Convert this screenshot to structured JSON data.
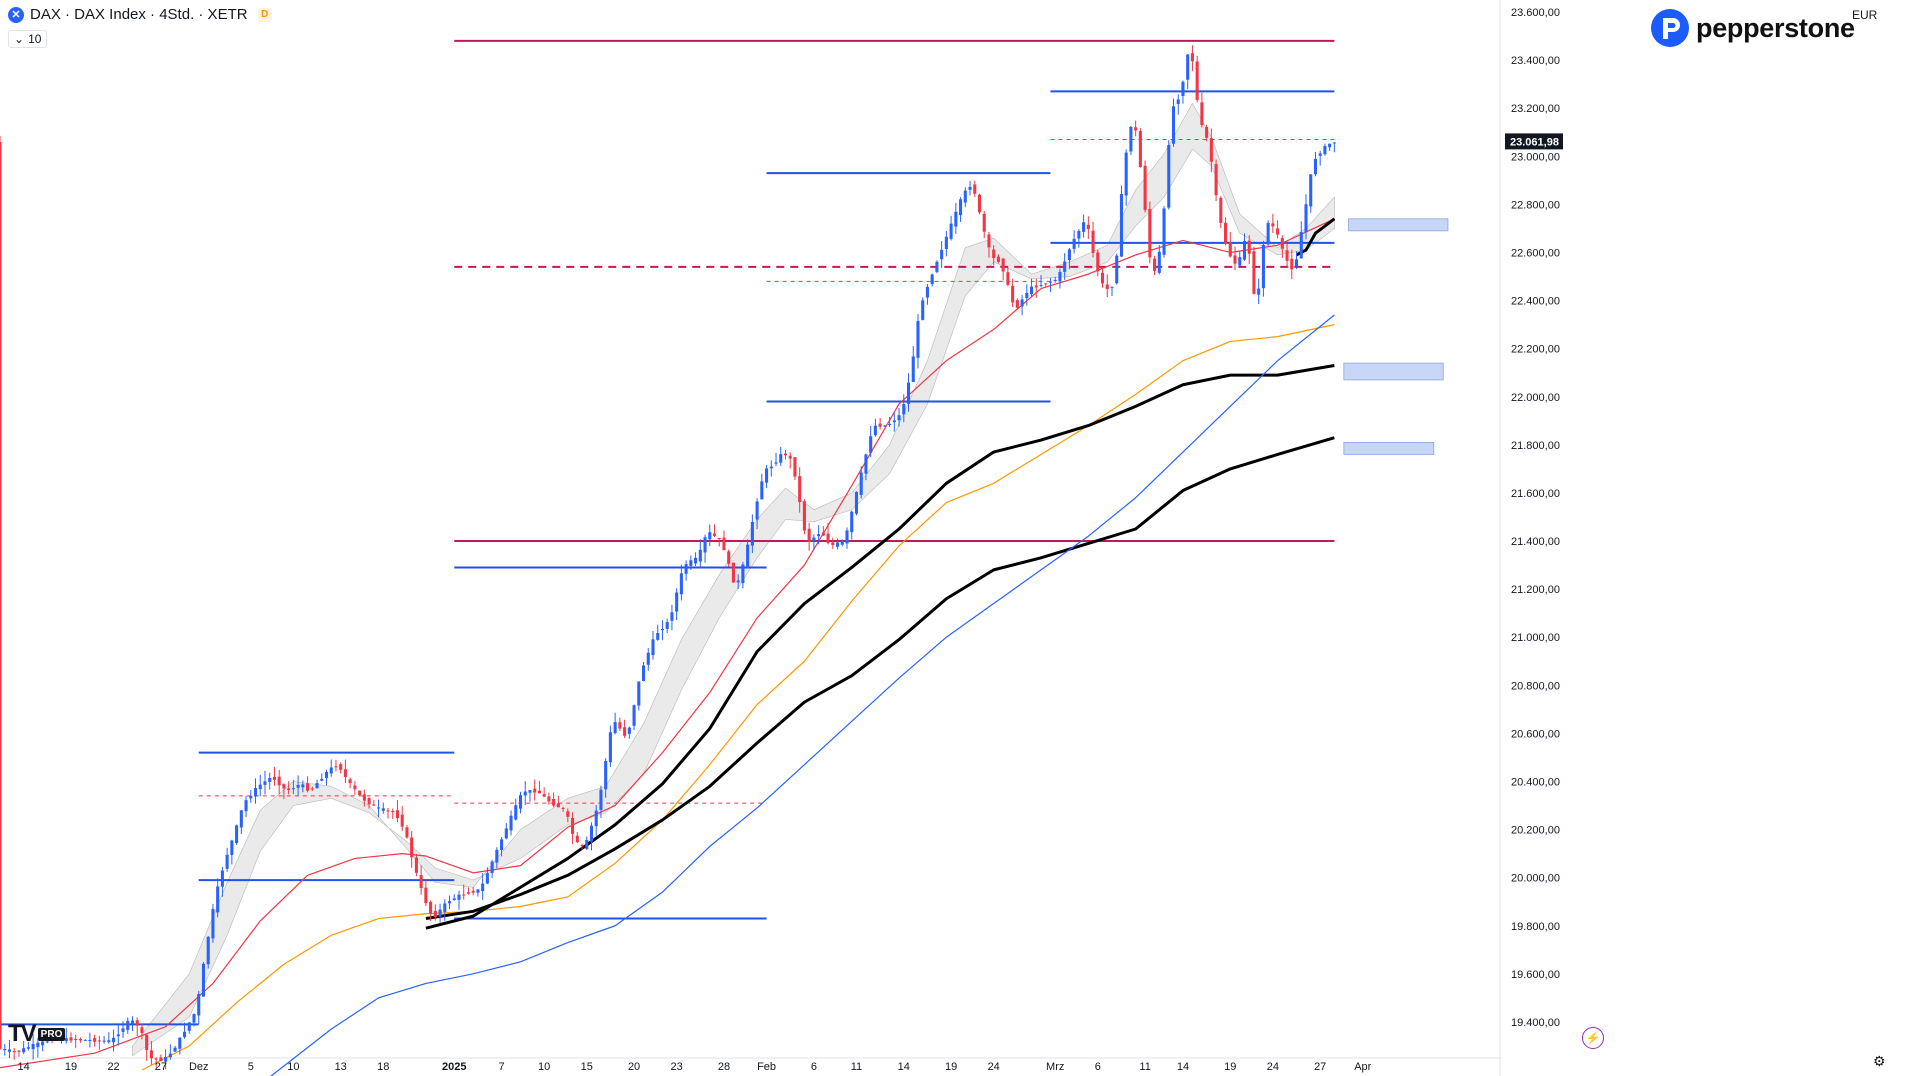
{
  "header": {
    "symbol_title": "DAX · DAX Index · 4Std. · XETR",
    "symbol_icon": "x-circle-icon",
    "data_badge": "D",
    "indicator_collapse_icon": "chevron-down-icon",
    "indicator_value": "10"
  },
  "brand": {
    "name": "pepperstone",
    "icon": "pepperstone-p-icon",
    "color": "#1a5cff"
  },
  "currency": "EUR",
  "footer": {
    "logo_text": "TV",
    "logo_badge": "PRO",
    "alert_icon": "lightning-icon",
    "settings_icon": "gear-icon"
  },
  "colors": {
    "up": "#2962ff",
    "down": "#f23645",
    "magenta": "#c2185b",
    "blue_level": "#1e53e5",
    "ema_red": "#f23645",
    "ema_orange": "#ff9800",
    "ema_black": "#000000",
    "ema_blue": "#2962ff",
    "zone": "#c6d6f7",
    "ribbon": "#b0b0b0"
  },
  "chart_data": {
    "type": "candlestick",
    "title": "",
    "y_axis": {
      "side": "right",
      "range": [
        19250,
        23650
      ],
      "ticks": [
        "23.600,00",
        "23.400,00",
        "23.200,00",
        "23.000,00",
        "22.800,00",
        "22.600,00",
        "22.400,00",
        "22.200,00",
        "22.000,00",
        "21.800,00",
        "21.600,00",
        "21.400,00",
        "21.200,00",
        "21.000,00",
        "20.800,00",
        "20.600,00",
        "20.400,00",
        "20.200,00",
        "20.000,00",
        "19.800,00",
        "19.600,00",
        "19.400,00"
      ],
      "tick_values": [
        23600,
        23400,
        23200,
        23000,
        22800,
        22600,
        22400,
        22200,
        22000,
        21800,
        21600,
        21400,
        21200,
        21000,
        20800,
        20600,
        20400,
        20200,
        20000,
        19800,
        19600,
        19400
      ]
    },
    "x_axis": {
      "range_index": [
        0,
        317
      ],
      "labels": [
        "14",
        "19",
        "22",
        "27",
        "Dez",
        "5",
        "10",
        "13",
        "18",
        "2025",
        "7",
        "10",
        "15",
        "20",
        "23",
        "28",
        "Feb",
        "6",
        "11",
        "14",
        "19",
        "24",
        "Mrz",
        "6",
        "11",
        "14",
        "19",
        "24",
        "27",
        "Apr"
      ],
      "label_index": [
        5,
        15,
        24,
        34,
        42,
        53,
        62,
        72,
        81,
        96,
        106,
        115,
        124,
        134,
        143,
        153,
        162,
        172,
        181,
        191,
        201,
        210,
        223,
        232,
        242,
        250,
        260,
        269,
        279,
        288
      ],
      "bold_labels": [
        "2025"
      ]
    },
    "last_price": {
      "value": 23061.98,
      "label": "23.061,98"
    },
    "candles_ohlc_path": {
      "start_index": 0,
      "points": [
        [
          0,
          19290
        ],
        [
          4,
          19275
        ],
        [
          7,
          19300
        ],
        [
          12,
          19330
        ],
        [
          24,
          19320
        ],
        [
          28,
          19410
        ],
        [
          30,
          19380
        ],
        [
          32,
          19250
        ],
        [
          35,
          19240
        ],
        [
          37,
          19280
        ],
        [
          40,
          19380
        ],
        [
          42,
          19450
        ],
        [
          44,
          19700
        ],
        [
          46,
          19920
        ],
        [
          48,
          20070
        ],
        [
          50,
          20180
        ],
        [
          52,
          20310
        ],
        [
          55,
          20380
        ],
        [
          58,
          20420
        ],
        [
          61,
          20360
        ],
        [
          64,
          20390
        ],
        [
          66,
          20360
        ],
        [
          70,
          20450
        ],
        [
          72,
          20470
        ],
        [
          74,
          20400
        ],
        [
          77,
          20330
        ],
        [
          80,
          20290
        ],
        [
          84,
          20270
        ],
        [
          86,
          20200
        ],
        [
          88,
          20050
        ],
        [
          90,
          19920
        ],
        [
          92,
          19830
        ],
        [
          95,
          19900
        ],
        [
          98,
          19930
        ],
        [
          102,
          19950
        ],
        [
          105,
          20090
        ],
        [
          108,
          20230
        ],
        [
          111,
          20360
        ],
        [
          114,
          20360
        ],
        [
          117,
          20310
        ],
        [
          120,
          20280
        ],
        [
          122,
          20150
        ],
        [
          124,
          20120
        ],
        [
          127,
          20310
        ],
        [
          130,
          20660
        ],
        [
          133,
          20580
        ],
        [
          136,
          20860
        ],
        [
          139,
          21010
        ],
        [
          142,
          21070
        ],
        [
          145,
          21300
        ],
        [
          148,
          21330
        ],
        [
          150,
          21440
        ],
        [
          153,
          21400
        ],
        [
          156,
          21200
        ],
        [
          158,
          21330
        ],
        [
          160,
          21530
        ],
        [
          162,
          21690
        ],
        [
          164,
          21720
        ],
        [
          166,
          21770
        ],
        [
          168,
          21730
        ],
        [
          171,
          21390
        ],
        [
          174,
          21440
        ],
        [
          176,
          21380
        ],
        [
          179,
          21400
        ],
        [
          182,
          21640
        ],
        [
          185,
          21880
        ],
        [
          188,
          21880
        ],
        [
          191,
          21930
        ],
        [
          193,
          22100
        ],
        [
          195,
          22380
        ],
        [
          198,
          22540
        ],
        [
          201,
          22690
        ],
        [
          204,
          22840
        ],
        [
          206,
          22890
        ],
        [
          208,
          22720
        ],
        [
          210,
          22580
        ],
        [
          212,
          22560
        ],
        [
          215,
          22360
        ],
        [
          218,
          22450
        ],
        [
          221,
          22470
        ],
        [
          224,
          22490
        ],
        [
          227,
          22640
        ],
        [
          230,
          22740
        ],
        [
          232,
          22550
        ],
        [
          234,
          22440
        ],
        [
          236,
          22470
        ],
        [
          238,
          22960
        ],
        [
          240,
          23180
        ],
        [
          242,
          22880
        ],
        [
          244,
          22480
        ],
        [
          246,
          22640
        ],
        [
          248,
          23190
        ],
        [
          250,
          23260
        ],
        [
          252,
          23480
        ],
        [
          254,
          23150
        ],
        [
          256,
          23050
        ],
        [
          258,
          22760
        ],
        [
          260,
          22600
        ],
        [
          262,
          22540
        ],
        [
          264,
          22680
        ],
        [
          266,
          22350
        ],
        [
          268,
          22730
        ],
        [
          270,
          22700
        ],
        [
          272,
          22580
        ],
        [
          274,
          22520
        ],
        [
          276,
          22740
        ],
        [
          278,
          22980
        ],
        [
          280,
          23030
        ],
        [
          282,
          23060
        ]
      ]
    },
    "series": [
      {
        "name": "",
        "kind": "ema",
        "color": "#f23645",
        "x": [
          0,
          20,
          35,
          45,
          55,
          65,
          75,
          85,
          90,
          100,
          110,
          120,
          130,
          140,
          150,
          160,
          170,
          180,
          190,
          200,
          210,
          220,
          230,
          240,
          250,
          260,
          270,
          282
        ],
        "y": [
          19210,
          19270,
          19380,
          19560,
          19820,
          20010,
          20080,
          20100,
          20090,
          20020,
          20050,
          20210,
          20300,
          20520,
          20770,
          21080,
          21300,
          21630,
          21970,
          22150,
          22280,
          22450,
          22510,
          22590,
          22650,
          22600,
          22630,
          22740
        ]
      },
      {
        "name": "",
        "kind": "ema",
        "color": "#ff9800",
        "x": [
          30,
          40,
          50,
          60,
          70,
          80,
          90,
          100,
          110,
          120,
          130,
          140,
          150,
          160,
          170,
          180,
          190,
          200,
          210,
          220,
          230,
          240,
          250,
          260,
          270,
          282
        ],
        "y": [
          19200,
          19300,
          19480,
          19640,
          19760,
          19830,
          19850,
          19860,
          19880,
          19920,
          20060,
          20240,
          20470,
          20720,
          20900,
          21150,
          21380,
          21560,
          21640,
          21760,
          21880,
          22010,
          22150,
          22230,
          22250,
          22300
        ]
      },
      {
        "name": "",
        "kind": "ema",
        "color": "#000000",
        "width": 3,
        "x": [
          90,
          100,
          110,
          120,
          130,
          140,
          150,
          160,
          170,
          180,
          190,
          200,
          210,
          220,
          230,
          240,
          250,
          260,
          270,
          282
        ],
        "y": [
          19790,
          19840,
          19960,
          20080,
          20220,
          20390,
          20620,
          20940,
          21140,
          21290,
          21450,
          21640,
          21770,
          21820,
          21880,
          21960,
          22050,
          22090,
          22090,
          22130
        ]
      },
      {
        "name": "",
        "kind": "ema",
        "color": "#000000",
        "width": 3,
        "x": [
          90,
          100,
          110,
          120,
          130,
          140,
          150,
          160,
          170,
          180,
          190,
          200,
          210,
          220,
          230,
          240,
          250,
          260,
          270,
          282
        ],
        "y": [
          19830,
          19860,
          19930,
          20010,
          20120,
          20240,
          20380,
          20560,
          20730,
          20840,
          20990,
          21160,
          21280,
          21330,
          21390,
          21450,
          21610,
          21700,
          21760,
          21830
        ]
      },
      {
        "name": "",
        "kind": "ema",
        "color": "#2962ff",
        "x": [
          55,
          70,
          80,
          90,
          100,
          110,
          120,
          130,
          140,
          150,
          160,
          170,
          180,
          190,
          200,
          210,
          220,
          230,
          240,
          250,
          260,
          270,
          282
        ],
        "y": [
          19140,
          19370,
          19500,
          19560,
          19600,
          19650,
          19730,
          19800,
          19940,
          20130,
          20290,
          20470,
          20650,
          20830,
          21000,
          21140,
          21280,
          21420,
          21580,
          21770,
          21960,
          22150,
          22340
        ]
      },
      {
        "name": "",
        "kind": "ema",
        "color": "#000000",
        "width": 3,
        "x": [
          274,
          276,
          278,
          280,
          282
        ],
        "y": [
          22590,
          22610,
          22680,
          22710,
          22740
        ]
      }
    ],
    "ribbon": {
      "color": "#e8e8e8",
      "upper": [
        [
          28,
          19300
        ],
        [
          40,
          19600
        ],
        [
          48,
          19980
        ],
        [
          55,
          20280
        ],
        [
          62,
          20400
        ],
        [
          70,
          20380
        ],
        [
          78,
          20300
        ],
        [
          86,
          20120
        ],
        [
          92,
          19980
        ],
        [
          100,
          19960
        ],
        [
          110,
          20200
        ],
        [
          120,
          20330
        ],
        [
          128,
          20380
        ],
        [
          136,
          20640
        ],
        [
          144,
          20990
        ],
        [
          152,
          21260
        ],
        [
          160,
          21490
        ],
        [
          166,
          21620
        ],
        [
          172,
          21530
        ],
        [
          180,
          21600
        ],
        [
          188,
          21800
        ],
        [
          196,
          22150
        ],
        [
          204,
          22620
        ],
        [
          210,
          22660
        ],
        [
          218,
          22510
        ],
        [
          226,
          22560
        ],
        [
          234,
          22630
        ],
        [
          240,
          22860
        ],
        [
          246,
          23010
        ],
        [
          252,
          23220
        ],
        [
          256,
          23080
        ],
        [
          262,
          22760
        ],
        [
          270,
          22620
        ],
        [
          276,
          22700
        ],
        [
          282,
          22830
        ]
      ],
      "lower": [
        [
          28,
          19260
        ],
        [
          40,
          19420
        ],
        [
          48,
          19760
        ],
        [
          55,
          20110
        ],
        [
          62,
          20300
        ],
        [
          70,
          20330
        ],
        [
          78,
          20270
        ],
        [
          86,
          20150
        ],
        [
          92,
          20040
        ],
        [
          100,
          19990
        ],
        [
          110,
          20080
        ],
        [
          120,
          20220
        ],
        [
          128,
          20270
        ],
        [
          136,
          20430
        ],
        [
          144,
          20780
        ],
        [
          152,
          21080
        ],
        [
          160,
          21330
        ],
        [
          166,
          21490
        ],
        [
          172,
          21480
        ],
        [
          180,
          21530
        ],
        [
          188,
          21680
        ],
        [
          196,
          21970
        ],
        [
          204,
          22420
        ],
        [
          210,
          22560
        ],
        [
          218,
          22490
        ],
        [
          226,
          22500
        ],
        [
          234,
          22560
        ],
        [
          240,
          22710
        ],
        [
          246,
          22830
        ],
        [
          252,
          23030
        ],
        [
          256,
          22960
        ],
        [
          262,
          22680
        ],
        [
          270,
          22590
        ],
        [
          276,
          22610
        ],
        [
          282,
          22700
        ]
      ]
    },
    "levels": [
      {
        "kind": "solid",
        "color": "#c2185b",
        "y": 23480,
        "x_from": 96,
        "x_to": 282
      },
      {
        "kind": "solid",
        "color": "#1e53e5",
        "y": 23270,
        "x_from": 222,
        "x_to": 282
      },
      {
        "kind": "solid",
        "color": "#1e53e5",
        "y": 22930,
        "x_from": 162,
        "x_to": 222
      },
      {
        "kind": "solid",
        "color": "#1e53e5",
        "y": 22640,
        "x_from": 222,
        "x_to": 282
      },
      {
        "kind": "dashed",
        "color": "#c2185b",
        "y": 22540,
        "x_from": 96,
        "x_to": 282
      },
      {
        "kind": "dotted",
        "color": "#f23645",
        "y": 23070,
        "x_from": 222,
        "x_to": 282
      },
      {
        "kind": "dotted",
        "color": "#f23645",
        "y": 22480,
        "x_from": 162,
        "x_to": 222
      },
      {
        "kind": "solid",
        "color": "#1e53e5",
        "y": 21980,
        "x_from": 162,
        "x_to": 222
      },
      {
        "kind": "solid",
        "color": "#c2185b",
        "y": 21400,
        "x_from": 96,
        "x_to": 282
      },
      {
        "kind": "solid",
        "color": "#1e53e5",
        "y": 21290,
        "x_from": 96,
        "x_to": 162
      },
      {
        "kind": "solid",
        "color": "#1e53e5",
        "y": 20520,
        "x_from": 42,
        "x_to": 96
      },
      {
        "kind": "dotted",
        "color": "#f23645",
        "y": 20340,
        "x_from": 42,
        "x_to": 96
      },
      {
        "kind": "dotted",
        "color": "#f23645",
        "y": 20310,
        "x_from": 96,
        "x_to": 162
      },
      {
        "kind": "solid",
        "color": "#1e53e5",
        "y": 19990,
        "x_from": 42,
        "x_to": 96
      },
      {
        "kind": "solid",
        "color": "#1e53e5",
        "y": 19830,
        "x_from": 96,
        "x_to": 162
      },
      {
        "kind": "solid",
        "color": "#1e53e5",
        "y": 19390,
        "x_from": 0,
        "x_to": 42
      }
    ],
    "zones": [
      {
        "y_top": 22740,
        "y_bottom": 22690,
        "x_from": 285,
        "x_to": 306
      },
      {
        "y_top": 22140,
        "y_bottom": 22070,
        "x_from": 284,
        "x_to": 305
      },
      {
        "y_top": 21810,
        "y_bottom": 21760,
        "x_from": 284,
        "x_to": 303
      }
    ]
  }
}
